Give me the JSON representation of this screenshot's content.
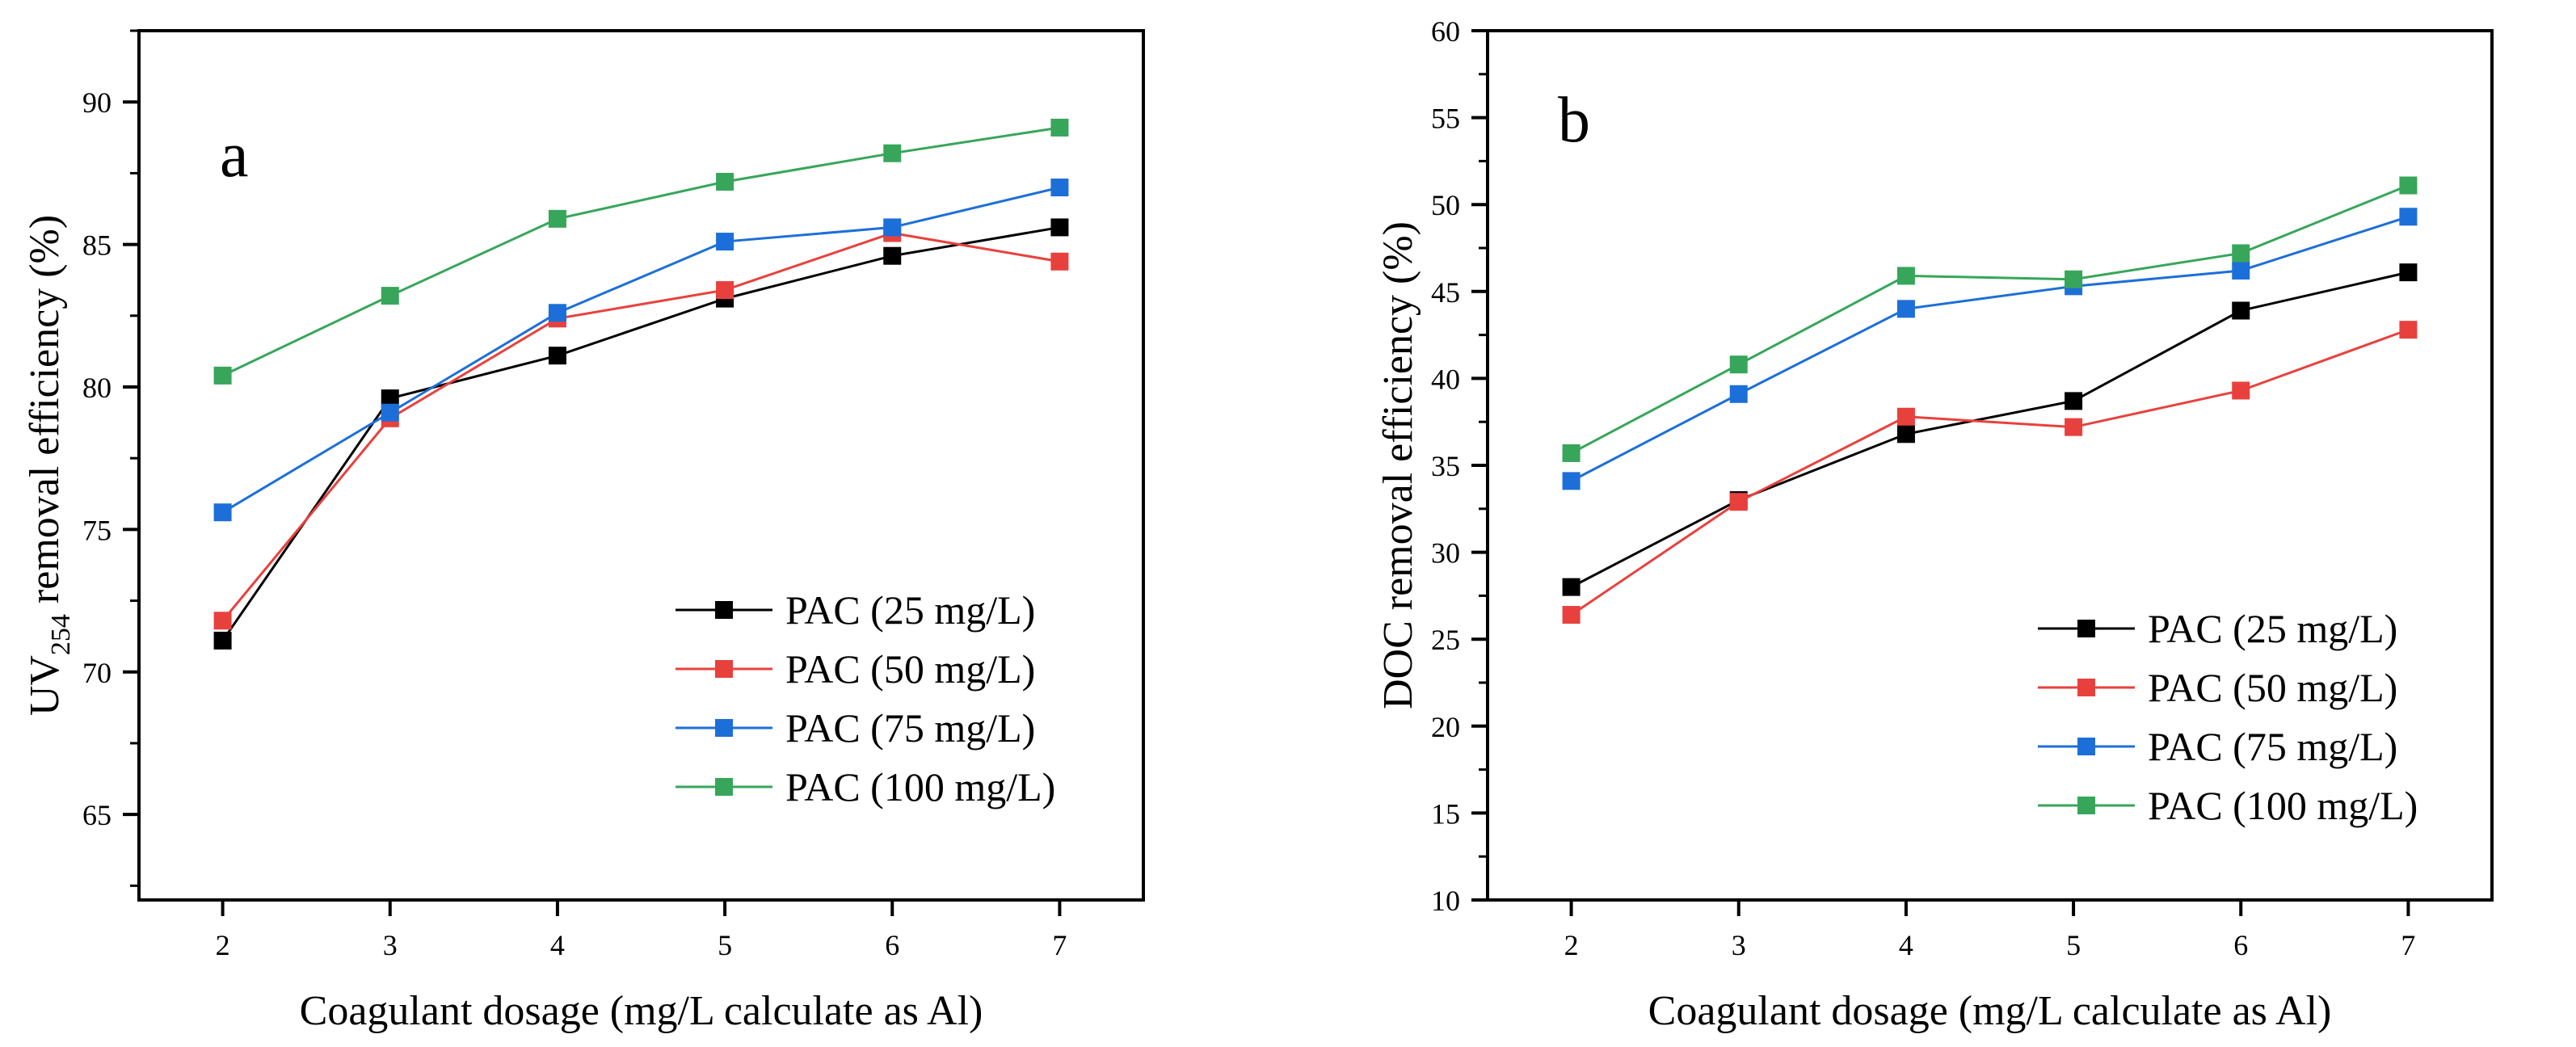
{
  "chart_data": [
    {
      "type": "line",
      "panel_label": "a",
      "title": "",
      "xlabel": "Coagulant dosage (mg/L calculate as Al)",
      "ylabel_main": "UV",
      "ylabel_sub": "254",
      "ylabel_rest": " removal efficiency (%)",
      "x": [
        2,
        3,
        4,
        5,
        6,
        7
      ],
      "xlim": [
        1.5,
        7.5
      ],
      "ylim": [
        62,
        92.5
      ],
      "xticks": [
        2,
        3,
        4,
        5,
        6,
        7
      ],
      "yticks": [
        65,
        70,
        75,
        80,
        85,
        90
      ],
      "yminor_step": 2.5,
      "legend_position": "bottom-right",
      "grid": false,
      "series": [
        {
          "name": "PAC (25 mg/L)",
          "color": "#000000",
          "values": [
            71.1,
            79.6,
            81.1,
            83.1,
            84.6,
            85.6
          ]
        },
        {
          "name": "PAC (50 mg/L)",
          "color": "#e8413d",
          "values": [
            71.8,
            78.9,
            82.4,
            83.4,
            85.4,
            84.4
          ]
        },
        {
          "name": "PAC (75 mg/L)",
          "color": "#1c6fd8",
          "values": [
            75.6,
            79.1,
            82.6,
            85.1,
            85.6,
            87.0
          ]
        },
        {
          "name": "PAC (100 mg/L)",
          "color": "#37a65a",
          "values": [
            80.4,
            83.2,
            85.9,
            87.2,
            88.2,
            89.1
          ]
        }
      ]
    },
    {
      "type": "line",
      "panel_label": "b",
      "title": "",
      "xlabel": "Coagulant dosage (mg/L calculate as Al)",
      "ylabel_main": "DOC removal efficiency (%)",
      "ylabel_sub": "",
      "ylabel_rest": "",
      "x": [
        2,
        3,
        4,
        5,
        6,
        7
      ],
      "xlim": [
        1.5,
        7.5
      ],
      "ylim": [
        10,
        60
      ],
      "xticks": [
        2,
        3,
        4,
        5,
        6,
        7
      ],
      "yticks": [
        10,
        15,
        20,
        25,
        30,
        35,
        40,
        45,
        50,
        55,
        60
      ],
      "yminor_step": 2.5,
      "legend_position": "bottom-right",
      "grid": false,
      "series": [
        {
          "name": "PAC (25 mg/L)",
          "color": "#000000",
          "values": [
            28.0,
            33.0,
            36.8,
            38.7,
            43.9,
            46.1
          ]
        },
        {
          "name": "PAC (50 mg/L)",
          "color": "#e8413d",
          "values": [
            26.4,
            32.9,
            37.8,
            37.2,
            39.3,
            42.8
          ]
        },
        {
          "name": "PAC (75 mg/L)",
          "color": "#1c6fd8",
          "values": [
            34.1,
            39.1,
            44.0,
            45.3,
            46.2,
            49.3
          ]
        },
        {
          "name": "PAC (100 mg/L)",
          "color": "#37a65a",
          "values": [
            35.7,
            40.8,
            45.9,
            45.7,
            47.2,
            51.1
          ]
        }
      ]
    }
  ]
}
